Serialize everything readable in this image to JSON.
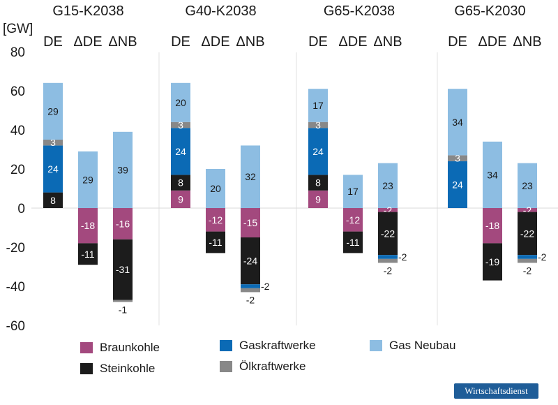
{
  "chart_data": {
    "type": "bar",
    "stacked": true,
    "ylabel": "[GW]",
    "ylim": [
      -60,
      80
    ],
    "yticks": [
      80,
      60,
      40,
      20,
      0,
      -20,
      -40,
      -60
    ],
    "scenarios": [
      {
        "title": "G15-K2038",
        "bars": [
          {
            "label": "DE",
            "segments": [
              {
                "series": "steinkohle",
                "value": 8,
                "label": "8"
              },
              {
                "series": "gaskraftwerke",
                "value": 24,
                "label": "24"
              },
              {
                "series": "oelkraftwerke",
                "value": 3,
                "label": "3"
              },
              {
                "series": "gasneubau",
                "value": 29,
                "label": "29"
              }
            ]
          },
          {
            "label": "ΔDE",
            "segments": [
              {
                "series": "gasneubau",
                "value": 29,
                "label": "29"
              },
              {
                "series": "braunkohle",
                "value": -18,
                "label": "-18"
              },
              {
                "series": "steinkohle",
                "value": -11,
                "label": "-11"
              }
            ]
          },
          {
            "label": "ΔNB",
            "segments": [
              {
                "series": "gasneubau",
                "value": 39,
                "label": "39"
              },
              {
                "series": "braunkohle",
                "value": -16,
                "label": "-16"
              },
              {
                "series": "steinkohle",
                "value": -31,
                "label": "-31"
              },
              {
                "series": "oelkraftwerke",
                "value": -1,
                "label": "-1"
              }
            ]
          }
        ]
      },
      {
        "title": "G40-K2038",
        "bars": [
          {
            "label": "DE",
            "segments": [
              {
                "series": "braunkohle",
                "value": 9,
                "label": "9"
              },
              {
                "series": "steinkohle",
                "value": 8,
                "label": "8"
              },
              {
                "series": "gaskraftwerke",
                "value": 24,
                "label": "24"
              },
              {
                "series": "oelkraftwerke",
                "value": 3,
                "label": "3"
              },
              {
                "series": "gasneubau",
                "value": 20,
                "label": "20"
              }
            ]
          },
          {
            "label": "ΔDE",
            "segments": [
              {
                "series": "gasneubau",
                "value": 20,
                "label": "20"
              },
              {
                "series": "braunkohle",
                "value": -12,
                "label": "-12"
              },
              {
                "series": "steinkohle",
                "value": -11,
                "label": "-11"
              }
            ]
          },
          {
            "label": "ΔNB",
            "segments": [
              {
                "series": "gasneubau",
                "value": 32,
                "label": "32"
              },
              {
                "series": "braunkohle",
                "value": -15,
                "label": "-15"
              },
              {
                "series": "steinkohle",
                "value": -24,
                "label": "-24"
              },
              {
                "series": "gaskraftwerke",
                "value": -2,
                "label": "-2"
              },
              {
                "series": "oelkraftwerke",
                "value": -2,
                "label": "-2"
              }
            ]
          }
        ]
      },
      {
        "title": "G65-K2038",
        "bars": [
          {
            "label": "DE",
            "segments": [
              {
                "series": "braunkohle",
                "value": 9,
                "label": "9"
              },
              {
                "series": "steinkohle",
                "value": 8,
                "label": "8"
              },
              {
                "series": "gaskraftwerke",
                "value": 24,
                "label": "24"
              },
              {
                "series": "oelkraftwerke",
                "value": 3,
                "label": "3"
              },
              {
                "series": "gasneubau",
                "value": 17,
                "label": "17"
              }
            ]
          },
          {
            "label": "ΔDE",
            "segments": [
              {
                "series": "gasneubau",
                "value": 17,
                "label": "17"
              },
              {
                "series": "braunkohle",
                "value": -12,
                "label": "-12"
              },
              {
                "series": "steinkohle",
                "value": -11,
                "label": "-11"
              }
            ]
          },
          {
            "label": "ΔNB",
            "segments": [
              {
                "series": "gasneubau",
                "value": 23,
                "label": "23"
              },
              {
                "series": "braunkohle",
                "value": -2,
                "label": "-2"
              },
              {
                "series": "steinkohle",
                "value": -22,
                "label": "-22"
              },
              {
                "series": "gaskraftwerke",
                "value": -2,
                "label": "-2"
              },
              {
                "series": "oelkraftwerke",
                "value": -2,
                "label": "-2"
              }
            ]
          }
        ]
      },
      {
        "title": "G65-K2030",
        "bars": [
          {
            "label": "DE",
            "segments": [
              {
                "series": "gaskraftwerke",
                "value": 24,
                "label": "24"
              },
              {
                "series": "oelkraftwerke",
                "value": 3,
                "label": "3"
              },
              {
                "series": "gasneubau",
                "value": 34,
                "label": "34"
              }
            ]
          },
          {
            "label": "ΔDE",
            "segments": [
              {
                "series": "gasneubau",
                "value": 34,
                "label": "34"
              },
              {
                "series": "braunkohle",
                "value": -18,
                "label": "-18"
              },
              {
                "series": "steinkohle",
                "value": -19,
                "label": "-19"
              }
            ]
          },
          {
            "label": "ΔNB",
            "segments": [
              {
                "series": "gasneubau",
                "value": 23,
                "label": "23"
              },
              {
                "series": "braunkohle",
                "value": -2,
                "label": "-2"
              },
              {
                "series": "steinkohle",
                "value": -22,
                "label": "-22"
              },
              {
                "series": "gaskraftwerke",
                "value": -2,
                "label": "-2"
              },
              {
                "series": "oelkraftwerke",
                "value": -2,
                "label": "-2"
              }
            ]
          }
        ]
      }
    ],
    "legend": [
      {
        "key": "braunkohle",
        "label": "Braunkohle",
        "color": "#a3497e"
      },
      {
        "key": "steinkohle",
        "label": "Steinkohle",
        "color": "#1c1c1c"
      },
      {
        "key": "gaskraftwerke",
        "label": "Gaskraftwerke",
        "color": "#0b6ab5"
      },
      {
        "key": "oelkraftwerke",
        "label": "Ölkraftwerke",
        "color": "#888888"
      },
      {
        "key": "gasneubau",
        "label": "Gas Neubau",
        "color": "#8dbde2"
      }
    ]
  },
  "badge": {
    "label": "Wirtschaftsdienst"
  }
}
